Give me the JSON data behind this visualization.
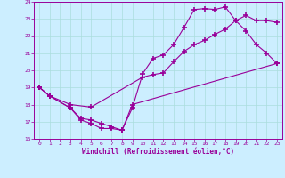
{
  "xlabel": "Windchill (Refroidissement éolien,°C)",
  "bg_color": "#cceeff",
  "grid_color": "#aadddd",
  "line_color": "#990099",
  "xlim": [
    -0.5,
    23.5
  ],
  "ylim": [
    16,
    24
  ],
  "xticks": [
    0,
    1,
    2,
    3,
    4,
    5,
    6,
    7,
    8,
    9,
    10,
    11,
    12,
    13,
    14,
    15,
    16,
    17,
    18,
    19,
    20,
    21,
    22,
    23
  ],
  "yticks": [
    16,
    17,
    18,
    19,
    20,
    21,
    22,
    23,
    24
  ],
  "line1_x": [
    0,
    1,
    3,
    4,
    5,
    6,
    7,
    8,
    9,
    10,
    11,
    12,
    13,
    14,
    15,
    16,
    17,
    18,
    19,
    20,
    21,
    22,
    23
  ],
  "line1_y": [
    19.0,
    18.5,
    17.8,
    17.2,
    17.1,
    16.9,
    16.7,
    16.5,
    17.8,
    19.8,
    20.7,
    20.9,
    21.5,
    22.5,
    23.55,
    23.6,
    23.55,
    23.7,
    22.9,
    22.3,
    21.5,
    21.0,
    20.4
  ],
  "line2_x": [
    0,
    1,
    3,
    5,
    10,
    11,
    12,
    13,
    14,
    15,
    16,
    17,
    18,
    19,
    20,
    21,
    22,
    23
  ],
  "line2_y": [
    19.0,
    18.5,
    18.0,
    17.85,
    19.6,
    19.75,
    19.85,
    20.5,
    21.1,
    21.5,
    21.75,
    22.1,
    22.4,
    22.9,
    23.2,
    22.9,
    22.9,
    22.8
  ],
  "line3_x": [
    0,
    1,
    3,
    4,
    5,
    6,
    7,
    8,
    9,
    23
  ],
  "line3_y": [
    19.0,
    18.5,
    17.8,
    17.1,
    16.9,
    16.6,
    16.6,
    16.5,
    18.0,
    20.4
  ]
}
